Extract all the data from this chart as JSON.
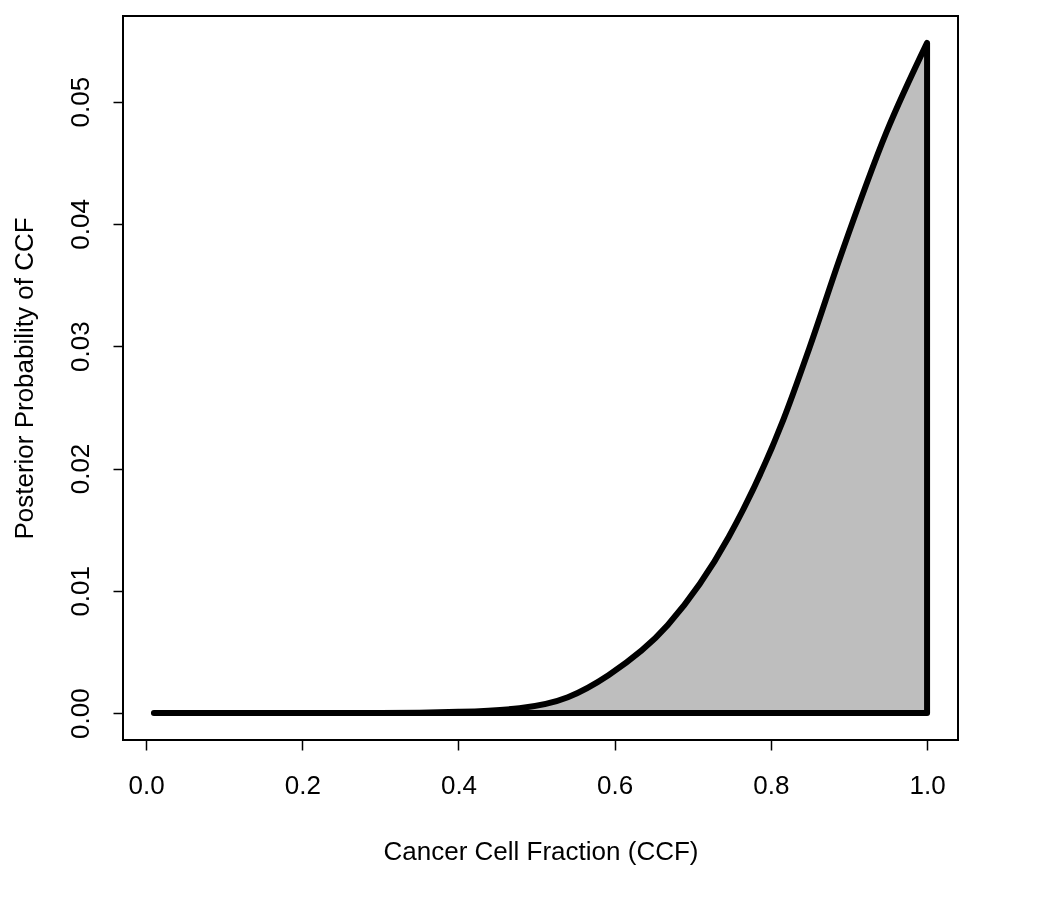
{
  "chart_data": {
    "type": "area",
    "xlabel": "Cancer Cell Fraction (CCF)",
    "ylabel": "Posterior Probability of CCF",
    "x": [
      0.01,
      0.3,
      0.4,
      0.478,
      0.54,
      0.592,
      0.668,
      0.746,
      0.816,
      0.849,
      0.89,
      0.948,
      1.0
    ],
    "series": [
      {
        "color": "#bebebe",
        "values": [
          0,
          0,
          0.0001,
          0.0004,
          0.0013,
          0.0031,
          0.0072,
          0.0144,
          0.024,
          0.0298,
          0.0375,
          0.0475,
          0.0548
        ]
      }
    ],
    "xlim": [
      -0.0296,
      1.0396
    ],
    "ylim": [
      -0.0022,
      0.057
    ],
    "xticks": [
      {
        "value": 0,
        "label": "0.0"
      },
      {
        "value": 0.2,
        "label": "0.2"
      },
      {
        "value": 0.4,
        "label": "0.4"
      },
      {
        "value": 0.6,
        "label": "0.6"
      },
      {
        "value": 0.8,
        "label": "0.8"
      },
      {
        "value": 1,
        "label": "1.0"
      }
    ],
    "yticks": [
      {
        "value": 0,
        "label": "0.00"
      },
      {
        "value": 0.01,
        "label": "0.01"
      },
      {
        "value": 0.02,
        "label": "0.02"
      },
      {
        "value": 0.03,
        "label": "0.03"
      },
      {
        "value": 0.04,
        "label": "0.04"
      },
      {
        "value": 0.05,
        "label": "0.05"
      }
    ],
    "grid": false,
    "line_style": "solid",
    "marker": "none"
  }
}
